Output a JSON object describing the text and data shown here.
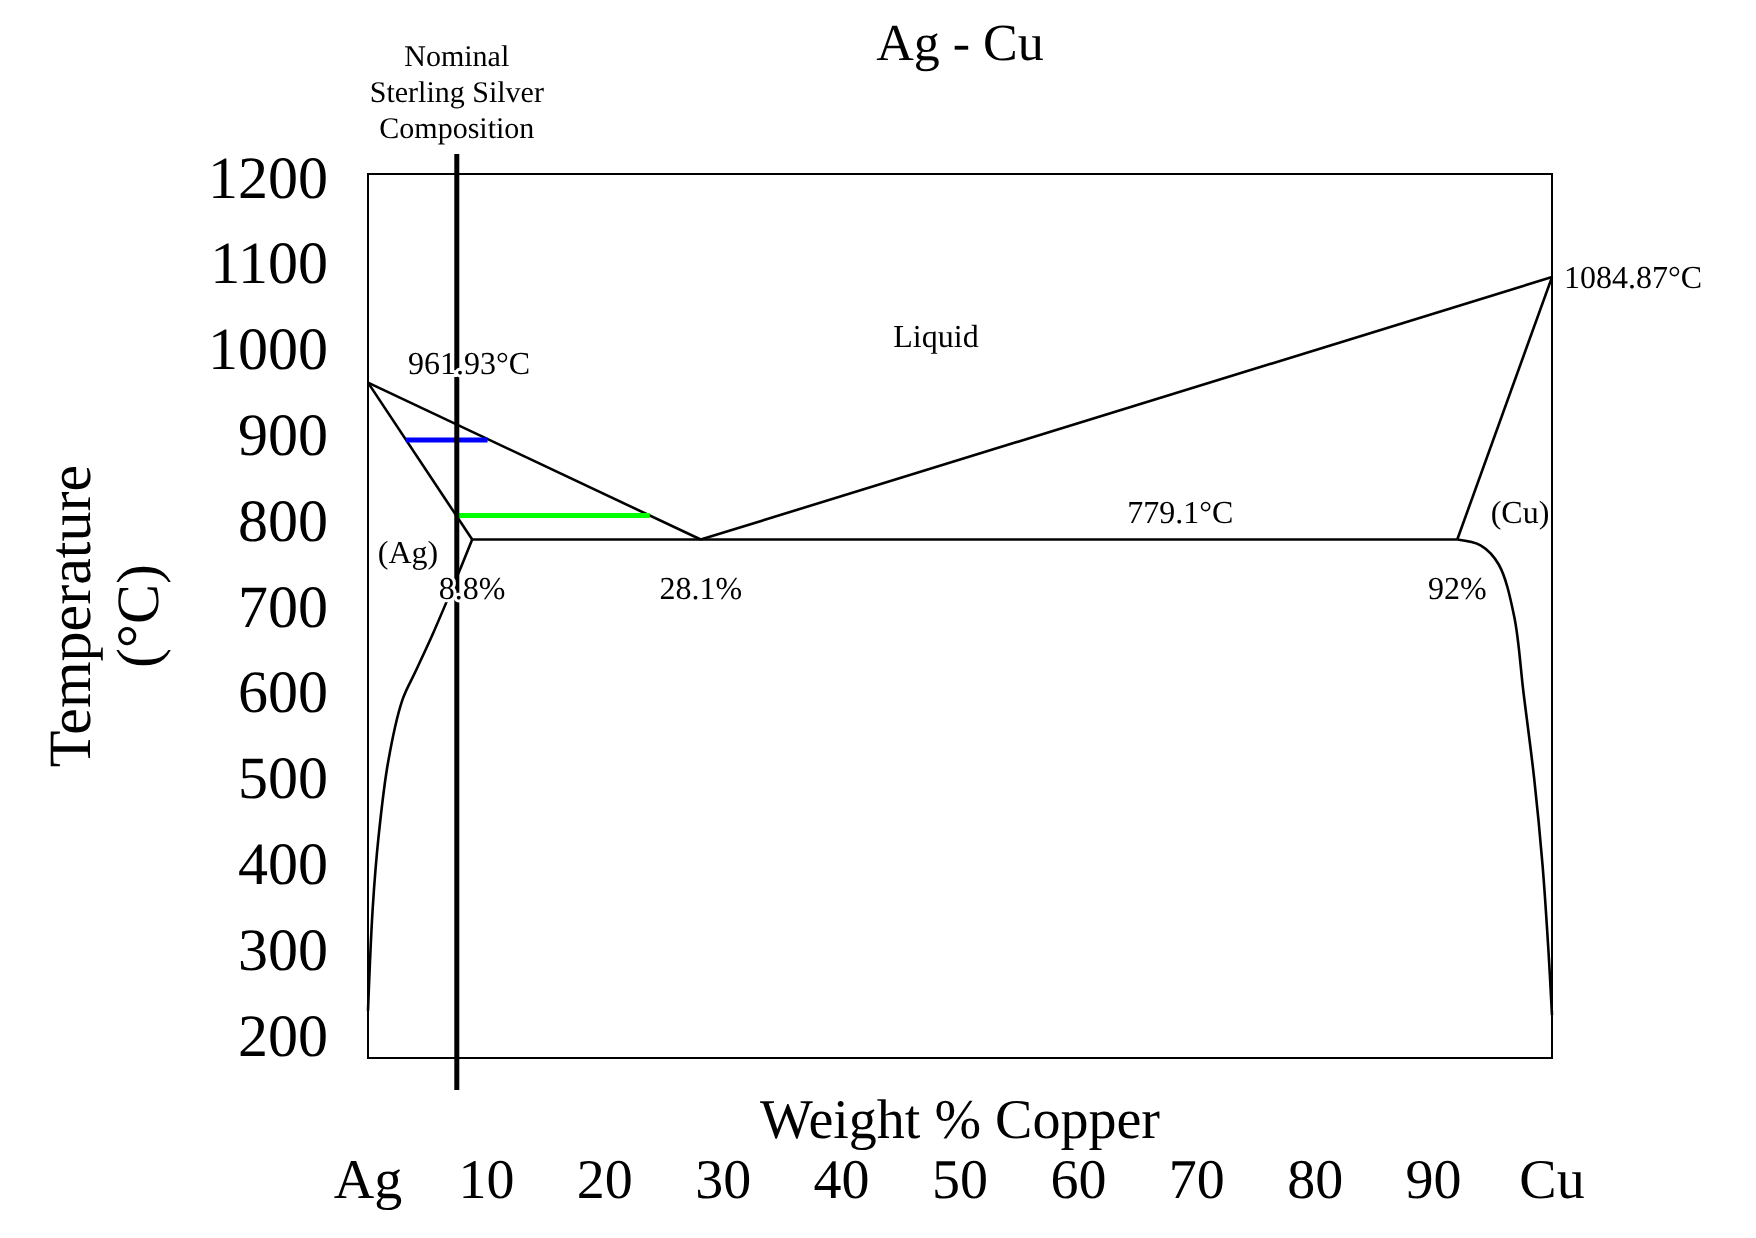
{
  "chart_data": {
    "type": "line",
    "title": "Ag - Cu",
    "xlabel": "Weight % Copper",
    "ylabel": "Temperature (°C)",
    "xlim": [
      0,
      100
    ],
    "ylim": [
      175,
      1205
    ],
    "xticks": [
      {
        "value": 0,
        "label": "Ag"
      },
      10,
      20,
      30,
      40,
      50,
      60,
      70,
      80,
      90,
      {
        "value": 100,
        "label": "Cu"
      }
    ],
    "yticks": [
      200,
      300,
      400,
      500,
      600,
      700,
      800,
      900,
      1000,
      1100,
      1200
    ],
    "grid": false,
    "series": [
      {
        "color": "#000000",
        "x": [
          0,
          28.1
        ],
        "values": [
          961.93,
          779.1
        ]
      },
      {
        "color": "#000000",
        "x": [
          28.1,
          100
        ],
        "values": [
          779.1,
          1084.87
        ]
      },
      {
        "color": "#000000",
        "x": [
          0,
          8.8
        ],
        "values": [
          961.93,
          779.1
        ]
      },
      {
        "color": "#000000",
        "x": [
          100,
          92
        ],
        "values": [
          1084.87,
          779.1
        ]
      },
      {
        "color": "#000000",
        "x": [
          8.8,
          92
        ],
        "values": [
          779.1,
          779.1
        ]
      },
      {
        "color": "#000000",
        "x": [
          8.8,
          7.5,
          5.5,
          4,
          2.9,
          1.7,
          0.9,
          0.4,
          0
        ],
        "values": [
          779.1,
          735,
          670,
          625,
          592,
          520,
          434,
          350,
          230
        ]
      },
      {
        "color": "#000000",
        "x": [
          92,
          94,
          95.5,
          96.8,
          97.6,
          98.5,
          99.2,
          99.7,
          100
        ],
        "values": [
          779.1,
          772,
          750,
          690,
          600,
          500,
          400,
          300,
          225
        ]
      },
      {
        "color": "#0000ff",
        "x": [
          3.2,
          10.1
        ],
        "values": [
          895,
          895
        ]
      },
      {
        "color": "#00ff00",
        "x": [
          7.5,
          23.8
        ],
        "values": [
          807,
          807
        ]
      }
    ],
    "ref_lines": [
      {
        "axis": "x",
        "value": 7.5,
        "label": "Nominal Sterling Silver Composition",
        "color": "#000000"
      }
    ],
    "annotations": [
      {
        "text": "961.93°C",
        "x": 0,
        "y": 961.93
      },
      {
        "text": "1084.87°C",
        "x": 100,
        "y": 1084.87
      },
      "Liquid",
      {
        "text": "779.1°C",
        "x": 68.6,
        "y": 779.1
      },
      "(Ag)",
      "(Cu)",
      {
        "text": "8.8%",
        "x": 8.8,
        "y": 779.1
      },
      {
        "text": "28.1%",
        "x": 28.1,
        "y": 779.1
      },
      {
        "text": "92%",
        "x": 92,
        "y": 779.1
      }
    ]
  }
}
